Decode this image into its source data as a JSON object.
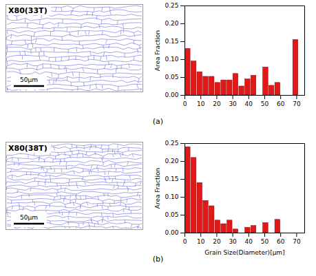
{
  "chart_data": [
    {
      "type": "histogram",
      "annotations": [
        "X80(33T)",
        "50μm"
      ],
      "caption": "(a)",
      "ylabel": "Area Fraction",
      "bins": [
        0,
        3.75,
        7.5,
        11.25,
        15,
        18.75,
        22.5,
        26.25,
        30,
        33.75,
        37.5,
        41.25,
        45,
        48.75,
        52.5,
        56.25,
        60,
        63.75,
        67.5,
        71.25,
        75
      ],
      "values": [
        0.13,
        0.095,
        0.065,
        0.052,
        0.052,
        0.035,
        0.042,
        0.042,
        0.06,
        0.025,
        0.045,
        0.055,
        0,
        0.078,
        0.027,
        0.035,
        0,
        0,
        0.155,
        0
      ],
      "color": "#e01818",
      "xlim": [
        0,
        75
      ],
      "xticks": [
        0,
        10,
        20,
        30,
        40,
        50,
        60,
        70
      ],
      "ylim": [
        0,
        0.25
      ],
      "yticks": [
        {
          "value": 0,
          "label": "0.00"
        },
        {
          "value": 0.05,
          "label": "0.05"
        },
        {
          "value": 0.1,
          "label": "0.10"
        },
        {
          "value": 0.15,
          "label": "0.15"
        },
        {
          "value": 0.2,
          "label": "0.20"
        },
        {
          "value": 0.25,
          "label": "0.25"
        }
      ]
    },
    {
      "type": "histogram",
      "annotations": [
        "X80(38T)",
        "50μm"
      ],
      "caption": "(b)",
      "xlabel": "Grain Size(Diameter)[μm]",
      "ylabel": "Area Fraction",
      "bins": [
        0,
        3.75,
        7.5,
        11.25,
        15,
        18.75,
        22.5,
        26.25,
        30,
        33.75,
        37.5,
        41.25,
        45,
        48.75,
        52.5,
        56.25,
        60,
        63.75,
        67.5,
        71.25,
        75
      ],
      "values": [
        0.24,
        0.21,
        0.14,
        0.09,
        0.075,
        0.035,
        0.025,
        0.035,
        0.01,
        0,
        0.015,
        0.02,
        0,
        0.028,
        0,
        0.037,
        0,
        0,
        0,
        0
      ],
      "color": "#e01818",
      "xlim": [
        0,
        75
      ],
      "xticks": [
        0,
        10,
        20,
        30,
        40,
        50,
        60,
        70
      ],
      "ylim": [
        0,
        0.25
      ],
      "yticks": [
        {
          "value": 0,
          "label": "0.00"
        },
        {
          "value": 0.05,
          "label": "0.05"
        },
        {
          "value": 0.1,
          "label": "0.10"
        },
        {
          "value": 0.15,
          "label": "0.15"
        },
        {
          "value": 0.2,
          "label": "0.20"
        },
        {
          "value": 0.25,
          "label": "0.25"
        }
      ]
    }
  ]
}
